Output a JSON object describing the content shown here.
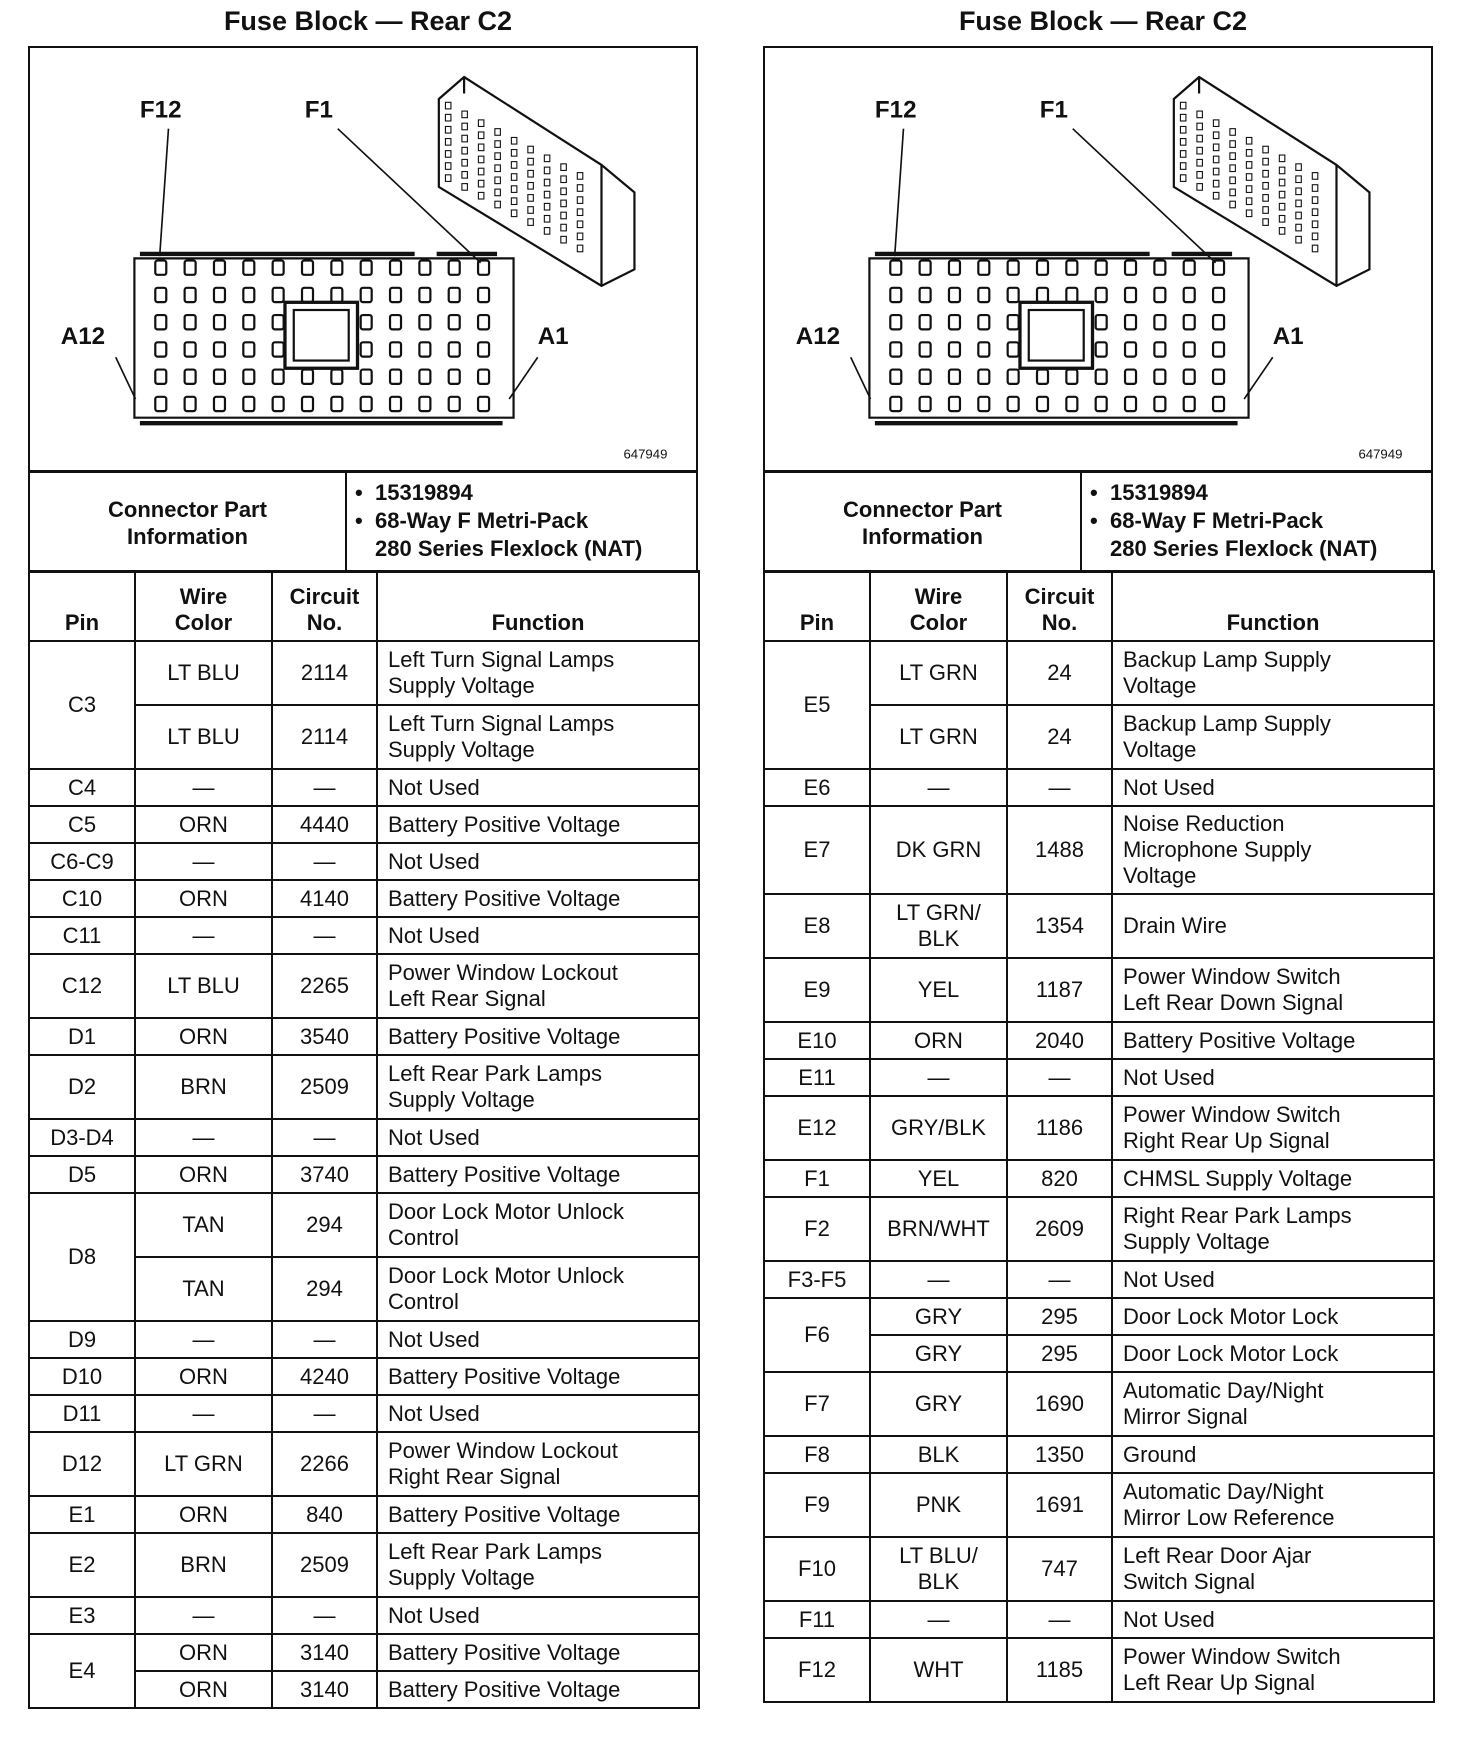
{
  "panels": [
    {
      "title": "Fuse Block — Rear C2",
      "diagram": {
        "labels": [
          "F12",
          "F1",
          "A12",
          "A1"
        ],
        "part_ref": "647949"
      },
      "connector_info": {
        "label": "Connector Part Information",
        "items": [
          "15319894",
          "68-Way F Metri-Pack",
          "280 Series Flexlock (NAT)"
        ]
      },
      "headers": [
        "Pin",
        "Wire Color",
        "Circuit No.",
        "Function"
      ],
      "rows": [
        {
          "pin": "C3",
          "entries": [
            {
              "wire": "LT BLU",
              "circuit": "2114",
              "function": "Left Turn Signal Lamps Supply Voltage"
            },
            {
              "wire": "LT BLU",
              "circuit": "2114",
              "function": "Left Turn Signal Lamps Supply Voltage"
            }
          ]
        },
        {
          "pin": "C4",
          "entries": [
            {
              "wire": "—",
              "circuit": "—",
              "function": "Not Used"
            }
          ]
        },
        {
          "pin": "C5",
          "entries": [
            {
              "wire": "ORN",
              "circuit": "4440",
              "function": "Battery Positive Voltage"
            }
          ]
        },
        {
          "pin": "C6-C9",
          "entries": [
            {
              "wire": "—",
              "circuit": "—",
              "function": "Not Used"
            }
          ]
        },
        {
          "pin": "C10",
          "entries": [
            {
              "wire": "ORN",
              "circuit": "4140",
              "function": "Battery Positive Voltage"
            }
          ]
        },
        {
          "pin": "C11",
          "entries": [
            {
              "wire": "—",
              "circuit": "—",
              "function": "Not Used"
            }
          ]
        },
        {
          "pin": "C12",
          "entries": [
            {
              "wire": "LT BLU",
              "circuit": "2265",
              "function": "Power Window Lockout Left Rear Signal"
            }
          ]
        },
        {
          "pin": "D1",
          "entries": [
            {
              "wire": "ORN",
              "circuit": "3540",
              "function": "Battery Positive Voltage"
            }
          ]
        },
        {
          "pin": "D2",
          "entries": [
            {
              "wire": "BRN",
              "circuit": "2509",
              "function": "Left Rear Park Lamps Supply Voltage"
            }
          ]
        },
        {
          "pin": "D3-D4",
          "entries": [
            {
              "wire": "—",
              "circuit": "—",
              "function": "Not Used"
            }
          ]
        },
        {
          "pin": "D5",
          "entries": [
            {
              "wire": "ORN",
              "circuit": "3740",
              "function": "Battery Positive Voltage"
            }
          ]
        },
        {
          "pin": "D8",
          "entries": [
            {
              "wire": "TAN",
              "circuit": "294",
              "function": "Door Lock Motor Unlock Control"
            },
            {
              "wire": "TAN",
              "circuit": "294",
              "function": "Door Lock Motor Unlock Control"
            }
          ]
        },
        {
          "pin": "D9",
          "entries": [
            {
              "wire": "—",
              "circuit": "—",
              "function": "Not Used"
            }
          ]
        },
        {
          "pin": "D10",
          "entries": [
            {
              "wire": "ORN",
              "circuit": "4240",
              "function": "Battery Positive Voltage"
            }
          ]
        },
        {
          "pin": "D11",
          "entries": [
            {
              "wire": "—",
              "circuit": "—",
              "function": "Not Used"
            }
          ]
        },
        {
          "pin": "D12",
          "entries": [
            {
              "wire": "LT GRN",
              "circuit": "2266",
              "function": "Power Window Lockout Right Rear Signal"
            }
          ]
        },
        {
          "pin": "E1",
          "entries": [
            {
              "wire": "ORN",
              "circuit": "840",
              "function": "Battery Positive Voltage"
            }
          ]
        },
        {
          "pin": "E2",
          "entries": [
            {
              "wire": "BRN",
              "circuit": "2509",
              "function": "Left Rear Park Lamps Supply Voltage"
            }
          ]
        },
        {
          "pin": "E3",
          "entries": [
            {
              "wire": "—",
              "circuit": "—",
              "function": "Not Used"
            }
          ]
        },
        {
          "pin": "E4",
          "entries": [
            {
              "wire": "ORN",
              "circuit": "3140",
              "function": "Battery Positive Voltage"
            },
            {
              "wire": "ORN",
              "circuit": "3140",
              "function": "Battery Positive Voltage"
            }
          ]
        }
      ]
    },
    {
      "title": "Fuse Block — Rear C2",
      "diagram": {
        "labels": [
          "F12",
          "F1",
          "A12",
          "A1"
        ],
        "part_ref": "647949"
      },
      "connector_info": {
        "label": "Connector Part Information",
        "items": [
          "15319894",
          "68-Way F Metri-Pack",
          "280 Series Flexlock (NAT)"
        ]
      },
      "headers": [
        "Pin",
        "Wire Color",
        "Circuit No.",
        "Function"
      ],
      "rows": [
        {
          "pin": "E5",
          "entries": [
            {
              "wire": "LT GRN",
              "circuit": "24",
              "function": "Backup Lamp Supply Voltage"
            },
            {
              "wire": "LT GRN",
              "circuit": "24",
              "function": "Backup Lamp Supply Voltage"
            }
          ]
        },
        {
          "pin": "E6",
          "entries": [
            {
              "wire": "—",
              "circuit": "—",
              "function": "Not Used"
            }
          ]
        },
        {
          "pin": "E7",
          "entries": [
            {
              "wire": "DK GRN",
              "circuit": "1488",
              "function": "Noise Reduction Microphone Supply Voltage"
            }
          ]
        },
        {
          "pin": "E8",
          "entries": [
            {
              "wire": "LT GRN/ BLK",
              "circuit": "1354",
              "function": "Drain Wire"
            }
          ]
        },
        {
          "pin": "E9",
          "entries": [
            {
              "wire": "YEL",
              "circuit": "1187",
              "function": "Power Window Switch Left Rear Down Signal"
            }
          ]
        },
        {
          "pin": "E10",
          "entries": [
            {
              "wire": "ORN",
              "circuit": "2040",
              "function": "Battery Positive Voltage"
            }
          ]
        },
        {
          "pin": "E11",
          "entries": [
            {
              "wire": "—",
              "circuit": "—",
              "function": "Not Used"
            }
          ]
        },
        {
          "pin": "E12",
          "entries": [
            {
              "wire": "GRY/BLK",
              "circuit": "1186",
              "function": "Power Window Switch Right Rear Up Signal"
            }
          ]
        },
        {
          "pin": "F1",
          "entries": [
            {
              "wire": "YEL",
              "circuit": "820",
              "function": "CHMSL Supply Voltage"
            }
          ]
        },
        {
          "pin": "F2",
          "entries": [
            {
              "wire": "BRN/WHT",
              "circuit": "2609",
              "function": "Right Rear Park Lamps Supply Voltage"
            }
          ]
        },
        {
          "pin": "F3-F5",
          "entries": [
            {
              "wire": "—",
              "circuit": "—",
              "function": "Not Used"
            }
          ]
        },
        {
          "pin": "F6",
          "entries": [
            {
              "wire": "GRY",
              "circuit": "295",
              "function": "Door Lock Motor Lock"
            },
            {
              "wire": "GRY",
              "circuit": "295",
              "function": "Door Lock Motor Lock"
            }
          ]
        },
        {
          "pin": "F7",
          "entries": [
            {
              "wire": "GRY",
              "circuit": "1690",
              "function": "Automatic Day/Night Mirror Signal"
            }
          ]
        },
        {
          "pin": "F8",
          "entries": [
            {
              "wire": "BLK",
              "circuit": "1350",
              "function": "Ground"
            }
          ]
        },
        {
          "pin": "F9",
          "entries": [
            {
              "wire": "PNK",
              "circuit": "1691",
              "function": "Automatic Day/Night Mirror Low Reference"
            }
          ]
        },
        {
          "pin": "F10",
          "entries": [
            {
              "wire": "LT BLU/ BLK",
              "circuit": "747",
              "function": "Left Rear Door Ajar Switch Signal"
            }
          ]
        },
        {
          "pin": "F11",
          "entries": [
            {
              "wire": "—",
              "circuit": "—",
              "function": "Not Used"
            }
          ]
        },
        {
          "pin": "F12",
          "entries": [
            {
              "wire": "WHT",
              "circuit": "1185",
              "function": "Power Window Switch Left Rear Up Signal"
            }
          ]
        }
      ]
    }
  ]
}
